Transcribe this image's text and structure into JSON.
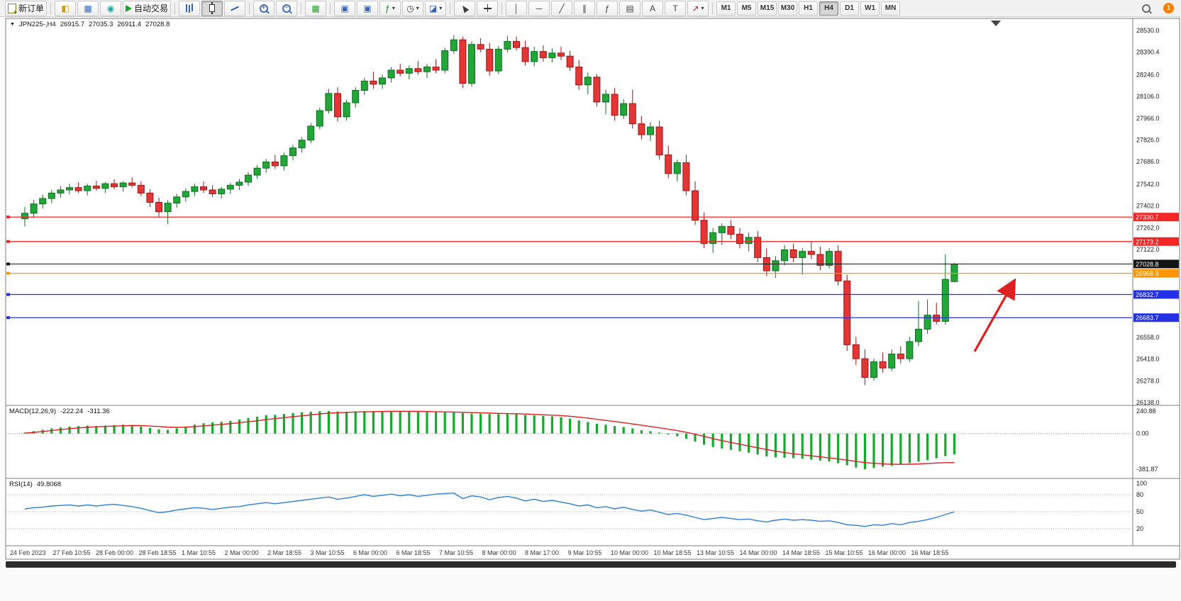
{
  "toolbar": {
    "new_order_label": "新订单",
    "auto_trading_label": "自动交易",
    "timeframes": [
      "M1",
      "M5",
      "M15",
      "M30",
      "H1",
      "H4",
      "D1",
      "W1",
      "MN"
    ],
    "active_timeframe": "H4",
    "notification_count": "1",
    "tool_buttons": [
      {
        "name": "new-order-button",
        "icon": "order-ticket-icon",
        "icls": "ic-doc",
        "label": "新订单"
      },
      {
        "sep": true
      },
      {
        "name": "new-chart-button",
        "icon": "new-chart-icon",
        "glyph": "◧",
        "color": "#d29a10"
      },
      {
        "name": "profiles-button",
        "icon": "profiles-icon",
        "glyph": "▦",
        "color": "#3567c2"
      },
      {
        "name": "community-button",
        "icon": "community-icon",
        "glyph": "◉",
        "color": "#18a9a1"
      },
      {
        "name": "auto-trading-button",
        "icon": "autotrading-play-icon",
        "icls": "ic-play",
        "label": "自动交易"
      },
      {
        "sep": true
      },
      {
        "name": "bar-chart-button",
        "icon": "ohlc-bars-icon",
        "icls": "ic-bars"
      },
      {
        "name": "candlestick-button",
        "icon": "candlestick-icon",
        "icls": "ic-candle",
        "active": true
      },
      {
        "name": "line-chart-button",
        "icon": "line-chart-icon",
        "icls": "ic-line"
      },
      {
        "sep": true
      },
      {
        "name": "zoom-in-button",
        "icon": "zoom-in-icon",
        "icls": "ic-zoom",
        "sign": "+"
      },
      {
        "name": "zoom-out-button",
        "icon": "zoom-out-icon",
        "icls": "ic-zoom",
        "sign": "−"
      },
      {
        "sep": true
      },
      {
        "name": "tile-windows-button",
        "icon": "tile-windows-icon",
        "glyph": "▦",
        "color": "#1fa32b"
      },
      {
        "sep": true
      },
      {
        "name": "arrange-cascade-button",
        "icon": "window-cascade-icon",
        "glyph": "▣",
        "color": "#3b62b5"
      },
      {
        "name": "arrange-tile-button",
        "icon": "window-tile-icon",
        "glyph": "▣",
        "color": "#3b62b5"
      },
      {
        "name": "indicators-button",
        "icon": "indicators-add-icon",
        "glyph": "ƒ",
        "color": "#0a8a1f",
        "caret": true
      },
      {
        "name": "periods-button",
        "icon": "clock-icon",
        "glyph": "◷",
        "color": "#444444",
        "caret": true
      },
      {
        "name": "templates-button",
        "icon": "chart-template-icon",
        "glyph": "◪",
        "color": "#3b62b5",
        "caret": true
      },
      {
        "sep": true
      },
      {
        "name": "cursor-button",
        "icon": "cursor-icon",
        "icls": "ic-cursor"
      },
      {
        "name": "crosshair-button",
        "icon": "crosshair-icon",
        "icls": "ic-cross"
      },
      {
        "sep": true
      },
      {
        "name": "vertical-line-button",
        "icon": "vertical-line-icon",
        "glyph": "│",
        "color": "#444444"
      },
      {
        "name": "horizontal-line-button",
        "icon": "horizontal-line-icon",
        "glyph": "─",
        "color": "#444444"
      },
      {
        "name": "trendline-button",
        "icon": "trendline-icon",
        "glyph": "╱",
        "color": "#444444"
      },
      {
        "name": "channel-button",
        "icon": "channel-icon",
        "glyph": "∥",
        "color": "#444444"
      },
      {
        "name": "fibonacci-button",
        "icon": "fibonacci-icon",
        "glyph": "ƒ",
        "color": "#444444"
      },
      {
        "name": "shapes-button",
        "icon": "shapes-icon",
        "glyph": "▤",
        "color": "#444444"
      },
      {
        "name": "text-button",
        "icon": "text-icon",
        "glyph": "A",
        "color": "#444444"
      },
      {
        "name": "text-label-button",
        "icon": "text-label-icon",
        "glyph": "T",
        "color": "#444444"
      },
      {
        "name": "arrows-button",
        "icon": "arrow-tools-icon",
        "glyph": "↗",
        "color": "#bb2222",
        "caret": true
      },
      {
        "sep": true
      }
    ]
  },
  "symbol_bar": {
    "collapse_glyph": "▼",
    "symbol": "JPN225-,H4",
    "open": "26915.7",
    "high": "27035.3",
    "low": "26911.4",
    "close": "27028.8"
  },
  "price_axis": {
    "labels": [
      "28530.0",
      "28390.4",
      "28246.0",
      "28106.0",
      "27966.0",
      "27826.0",
      "27686.0",
      "27542.0",
      "27402.0",
      "27262.0",
      "27122.0",
      "26558.0",
      "26418.0",
      "26278.0",
      "26138.0"
    ]
  },
  "price_lines": [
    {
      "label": "27330.7",
      "price": 27330.7,
      "color": "#f42525",
      "current": false
    },
    {
      "label": "27173.2",
      "price": 27173.2,
      "color": "#f42525",
      "current": false
    },
    {
      "label": "27028.8",
      "price": 27028.8,
      "color": "#141414",
      "current": true
    },
    {
      "label": "26968.9",
      "price": 26968.9,
      "color": "#ff9800",
      "current": false
    },
    {
      "label": "26832.7",
      "price": 26832.7,
      "color": "#2330e8",
      "current": false
    },
    {
      "label": "26683.7",
      "price": 26683.7,
      "color": "#2330e8",
      "current": false
    }
  ],
  "colors": {
    "bull": "#21a637",
    "bull_border": "#0d6e22",
    "bear": "#e33636",
    "bear_border": "#9e1414",
    "macd_hist": "#17a82e",
    "macd_signal": "#e02020",
    "rsi_line": "#2f7ed8",
    "annotation": "#e01f1f"
  },
  "chart_data": {
    "type": "candlestick",
    "symbol": "JPN225-",
    "timeframe": "H4",
    "candles": [
      [
        27320,
        27395,
        27270,
        27355
      ],
      [
        27355,
        27440,
        27325,
        27415
      ],
      [
        27415,
        27475,
        27385,
        27450
      ],
      [
        27450,
        27505,
        27420,
        27485
      ],
      [
        27485,
        27530,
        27455,
        27505
      ],
      [
        27505,
        27545,
        27475,
        27520
      ],
      [
        27520,
        27555,
        27485,
        27500
      ],
      [
        27500,
        27545,
        27470,
        27530
      ],
      [
        27530,
        27565,
        27500,
        27515
      ],
      [
        27515,
        27555,
        27485,
        27545
      ],
      [
        27545,
        27575,
        27510,
        27525
      ],
      [
        27525,
        27560,
        27495,
        27550
      ],
      [
        27550,
        27585,
        27520,
        27535
      ],
      [
        27535,
        27560,
        27465,
        27485
      ],
      [
        27485,
        27510,
        27395,
        27425
      ],
      [
        27425,
        27455,
        27330,
        27365
      ],
      [
        27365,
        27440,
        27285,
        27420
      ],
      [
        27420,
        27480,
        27390,
        27460
      ],
      [
        27460,
        27515,
        27430,
        27495
      ],
      [
        27495,
        27545,
        27465,
        27525
      ],
      [
        27525,
        27560,
        27485,
        27505
      ],
      [
        27505,
        27535,
        27460,
        27480
      ],
      [
        27480,
        27525,
        27450,
        27510
      ],
      [
        27510,
        27550,
        27480,
        27535
      ],
      [
        27535,
        27575,
        27505,
        27555
      ],
      [
        27555,
        27620,
        27530,
        27600
      ],
      [
        27600,
        27665,
        27575,
        27645
      ],
      [
        27645,
        27705,
        27615,
        27685
      ],
      [
        27685,
        27730,
        27640,
        27660
      ],
      [
        27660,
        27745,
        27630,
        27725
      ],
      [
        27725,
        27795,
        27695,
        27775
      ],
      [
        27775,
        27845,
        27745,
        27825
      ],
      [
        27825,
        27935,
        27805,
        27915
      ],
      [
        27915,
        28035,
        27895,
        28015
      ],
      [
        28015,
        28155,
        27995,
        28125
      ],
      [
        28125,
        28165,
        27945,
        27975
      ],
      [
        27975,
        28085,
        27950,
        28065
      ],
      [
        28065,
        28165,
        28035,
        28145
      ],
      [
        28145,
        28225,
        28115,
        28205
      ],
      [
        28205,
        28265,
        28155,
        28185
      ],
      [
        28185,
        28245,
        28155,
        28225
      ],
      [
        28225,
        28295,
        28195,
        28275
      ],
      [
        28275,
        28315,
        28235,
        28255
      ],
      [
        28255,
        28305,
        28215,
        28285
      ],
      [
        28285,
        28335,
        28245,
        28265
      ],
      [
        28265,
        28315,
        28225,
        28295
      ],
      [
        28295,
        28345,
        28255,
        28275
      ],
      [
        28275,
        28420,
        28255,
        28400
      ],
      [
        28400,
        28500,
        28380,
        28470
      ],
      [
        28470,
        28490,
        28160,
        28190
      ],
      [
        28190,
        28460,
        28170,
        28440
      ],
      [
        28440,
        28480,
        28390,
        28410
      ],
      [
        28410,
        28450,
        28240,
        28270
      ],
      [
        28270,
        28430,
        28250,
        28410
      ],
      [
        28410,
        28495,
        28390,
        28460
      ],
      [
        28460,
        28490,
        28400,
        28420
      ],
      [
        28420,
        28465,
        28305,
        28330
      ],
      [
        28330,
        28425,
        28300,
        28395
      ],
      [
        28395,
        28435,
        28330,
        28355
      ],
      [
        28355,
        28415,
        28325,
        28385
      ],
      [
        28385,
        28425,
        28340,
        28365
      ],
      [
        28365,
        28400,
        28270,
        28295
      ],
      [
        28295,
        28340,
        28150,
        28180
      ],
      [
        28180,
        28260,
        28120,
        28230
      ],
      [
        28230,
        28250,
        28040,
        28070
      ],
      [
        28070,
        28150,
        27990,
        28120
      ],
      [
        28120,
        28160,
        27950,
        27985
      ],
      [
        27985,
        28090,
        27960,
        28060
      ],
      [
        28060,
        28150,
        27900,
        27930
      ],
      [
        27930,
        27980,
        27830,
        27860
      ],
      [
        27860,
        27940,
        27820,
        27910
      ],
      [
        27910,
        27950,
        27700,
        27730
      ],
      [
        27730,
        27790,
        27580,
        27610
      ],
      [
        27610,
        27700,
        27560,
        27680
      ],
      [
        27680,
        27730,
        27470,
        27500
      ],
      [
        27500,
        27560,
        27280,
        27310
      ],
      [
        27310,
        27360,
        27130,
        27160
      ],
      [
        27160,
        27260,
        27100,
        27230
      ],
      [
        27230,
        27290,
        27150,
        27270
      ],
      [
        27270,
        27310,
        27190,
        27220
      ],
      [
        27220,
        27260,
        27130,
        27160
      ],
      [
        27160,
        27230,
        27110,
        27200
      ],
      [
        27200,
        27240,
        27040,
        27070
      ],
      [
        27070,
        27130,
        26950,
        26985
      ],
      [
        26985,
        27080,
        26940,
        27050
      ],
      [
        27050,
        27150,
        27020,
        27120
      ],
      [
        27120,
        27160,
        27040,
        27070
      ],
      [
        27070,
        27130,
        26960,
        27110
      ],
      [
        27110,
        27175,
        27060,
        27090
      ],
      [
        27090,
        27140,
        26990,
        27020
      ],
      [
        27020,
        27130,
        27000,
        27110
      ],
      [
        27110,
        27150,
        26890,
        26920
      ],
      [
        26920,
        26960,
        26470,
        26510
      ],
      [
        26510,
        26560,
        26380,
        26420
      ],
      [
        26420,
        26480,
        26250,
        26300
      ],
      [
        26300,
        26420,
        26280,
        26400
      ],
      [
        26400,
        26460,
        26330,
        26360
      ],
      [
        26360,
        26480,
        26340,
        26450
      ],
      [
        26450,
        26500,
        26390,
        26420
      ],
      [
        26420,
        26560,
        26400,
        26530
      ],
      [
        26530,
        26790,
        26500,
        26610
      ],
      [
        26610,
        26800,
        26580,
        26700
      ],
      [
        26700,
        26780,
        26640,
        26660
      ],
      [
        26660,
        27090,
        26640,
        26930
      ],
      [
        26915.7,
        27035.3,
        26911.4,
        27028.8
      ]
    ],
    "macd": {
      "label": "MACD(12,26,9)",
      "value_main": "-222.24",
      "value_signal": "-311.36",
      "axis_labels": [
        "240.88",
        "0.00",
        "-381.87"
      ],
      "hist": [
        10,
        25,
        40,
        55,
        65,
        75,
        80,
        85,
        80,
        85,
        90,
        95,
        90,
        75,
        60,
        45,
        40,
        55,
        75,
        95,
        110,
        120,
        125,
        135,
        150,
        165,
        180,
        195,
        200,
        210,
        220,
        228,
        234,
        238,
        240.88,
        236,
        233,
        237,
        240,
        238,
        236,
        237,
        234,
        233,
        231,
        229,
        228,
        226,
        228,
        219,
        214,
        213,
        209,
        209,
        212,
        208,
        199,
        194,
        189,
        184,
        175,
        160,
        140,
        125,
        105,
        95,
        80,
        70,
        55,
        35,
        25,
        10,
        -10,
        -30,
        -55,
        -85,
        -120,
        -145,
        -160,
        -175,
        -190,
        -205,
        -225,
        -245,
        -255,
        -260,
        -265,
        -270,
        -280,
        -290,
        -300,
        -318,
        -340,
        -365,
        -381.87,
        -370,
        -355,
        -345,
        -332,
        -318,
        -302,
        -286,
        -265,
        -242,
        -222.24
      ],
      "signal": [
        5,
        12,
        22,
        32,
        42,
        52,
        60,
        67,
        72,
        76,
        80,
        84,
        86,
        85,
        81,
        75,
        69,
        66,
        68,
        74,
        82,
        90,
        98,
        106,
        115,
        126,
        137,
        149,
        160,
        170,
        180,
        190,
        200,
        210,
        218,
        222,
        227,
        230,
        233,
        235,
        236,
        238,
        238,
        238,
        237,
        236,
        234,
        232,
        230,
        228,
        225,
        222,
        219,
        216,
        214,
        212,
        209,
        205,
        201,
        197,
        192,
        185,
        176,
        165,
        153,
        141,
        128,
        116,
        103,
        89,
        75,
        62,
        47,
        31,
        13,
        -7,
        -30,
        -54,
        -76,
        -96,
        -115,
        -134,
        -153,
        -172,
        -189,
        -204,
        -217,
        -228,
        -239,
        -250,
        -261,
        -272,
        -285,
        -299,
        -311,
        -319,
        -325,
        -329,
        -330,
        -329,
        -326,
        -321,
        -316,
        -312,
        -311.36
      ]
    },
    "rsi": {
      "label": "RSI(14)",
      "value": "49.8068",
      "axis_labels": [
        "100",
        "80",
        "50",
        "20"
      ],
      "levels": [
        80,
        50,
        20
      ],
      "values": [
        55,
        57,
        58,
        60,
        61,
        62,
        60,
        62,
        60,
        62,
        63,
        61,
        59,
        56,
        52,
        48,
        50,
        53,
        55,
        57,
        56,
        54,
        56,
        58,
        59,
        62,
        64,
        66,
        64,
        66,
        68,
        70,
        72,
        74,
        76,
        72,
        74,
        77,
        80,
        77,
        79,
        81,
        78,
        80,
        77,
        79,
        81,
        82,
        83,
        73,
        78,
        76,
        71,
        75,
        77,
        74,
        69,
        72,
        68,
        70,
        67,
        64,
        60,
        62,
        57,
        59,
        55,
        58,
        54,
        51,
        53,
        49,
        45,
        47,
        44,
        40,
        36,
        38,
        40,
        38,
        36,
        37,
        34,
        32,
        35,
        37,
        35,
        36,
        35,
        33,
        34,
        31,
        27,
        26,
        24,
        27,
        26,
        29,
        27,
        31,
        33,
        36,
        40,
        45,
        49.8068
      ]
    },
    "time_labels": [
      "24 Feb 2023",
      "27 Feb 10:55",
      "28 Feb 00:00",
      "28 Feb 18:55",
      "1 Mar 10:55",
      "2 Mar 00:00",
      "2 Mar 18:55",
      "3 Mar 10:55",
      "6 Mar 00:00",
      "6 Mar 18:55",
      "7 Mar 10:55",
      "8 Mar 00:00",
      "8 Mar 17:00",
      "9 Mar 10:55",
      "10 Mar 00:00",
      "10 Mar 18:55",
      "13 Mar 10:55",
      "14 Mar 00:00",
      "14 Mar 18:55",
      "15 Mar 10:55",
      "16 Mar 00:00",
      "16 Mar 18:55"
    ]
  }
}
